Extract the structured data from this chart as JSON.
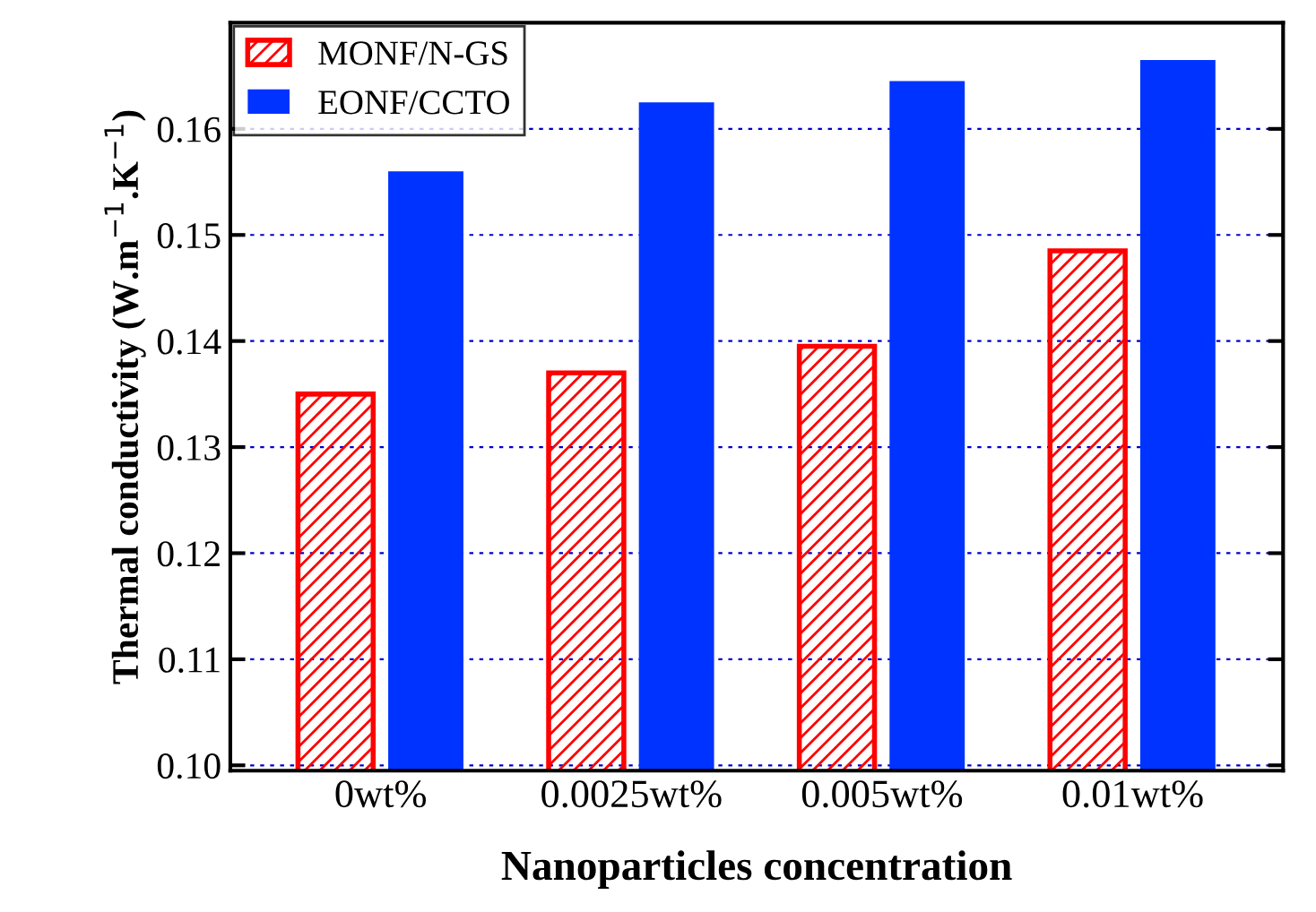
{
  "chart_data": {
    "type": "bar",
    "xlabel": "Nanoparticles concentration",
    "ylabel": "Thermal conductivity (W.m$^{−1}$.K$^{−1}$)",
    "categories": [
      "0wt%",
      "0.0025wt%",
      "0.005wt%",
      "0.01wt%"
    ],
    "series": [
      {
        "name": "MONF/N-GS",
        "color": "#ff0000",
        "values": [
          0.135,
          0.137,
          0.1395,
          0.1485
        ]
      },
      {
        "name": "EONF/CCTO",
        "color": "#0033ff",
        "values": [
          0.156,
          0.1625,
          0.1645,
          0.1665
        ]
      }
    ],
    "ylim": [
      0.0995,
      0.17
    ],
    "yticks": [
      {
        "value": 0.1,
        "label": "0.10"
      },
      0.11,
      0.12,
      0.13,
      0.14,
      0.15,
      0.16
    ],
    "grid": "y",
    "legend": "top left"
  }
}
